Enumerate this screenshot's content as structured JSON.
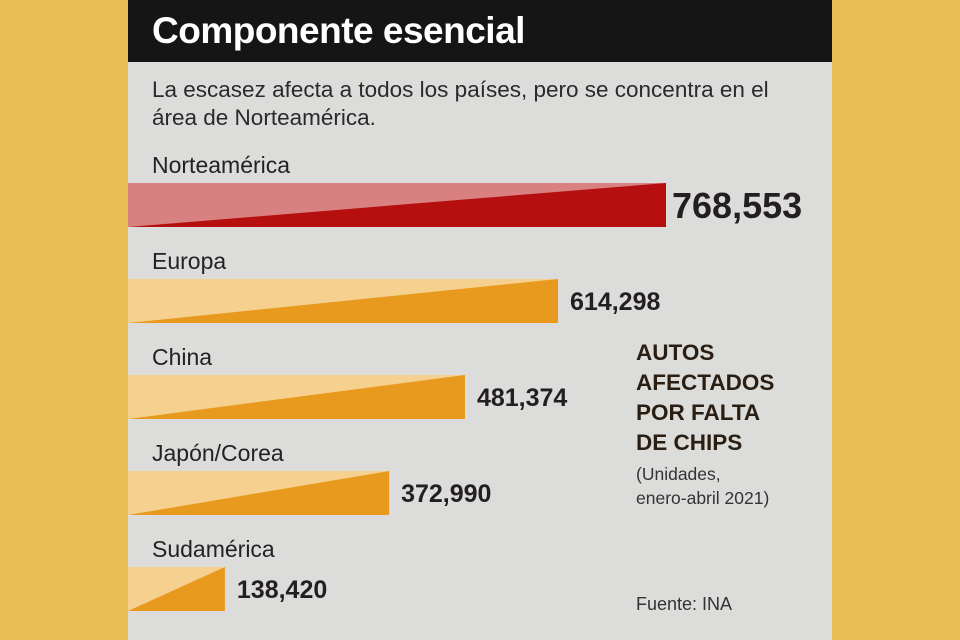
{
  "header": {
    "title": "Componente esencial",
    "subtitle": "La escasez afecta a todos los países, pero se concentra en el área de Norteamérica."
  },
  "side_note": {
    "headline": "AUTOS\nAFECTADOS\nPOR FALTA\nDE CHIPS",
    "units": "(Unidades,\nenero-abril 2021)"
  },
  "source": "Fuente: INA",
  "colors": {
    "highlight_dark": "#B50F10",
    "highlight_light": "#D98080",
    "bar_dark": "#E89A1E",
    "bar_light": "#F6D08E",
    "page_bg": "#E9BF55",
    "card_bg": "#DCDCDA"
  },
  "chart_data": {
    "type": "bar",
    "orientation": "horizontal",
    "categories": [
      "Norteamérica",
      "Europa",
      "China",
      "Japón/Corea",
      "Sudamérica"
    ],
    "values": [
      768553,
      614298,
      481374,
      372990,
      138420
    ],
    "value_labels": [
      "768,553",
      "614,298",
      "481,374",
      "372,990",
      "138,420"
    ],
    "highlight_index": 0,
    "title": "Componente esencial",
    "grid": false,
    "legend": "none"
  }
}
